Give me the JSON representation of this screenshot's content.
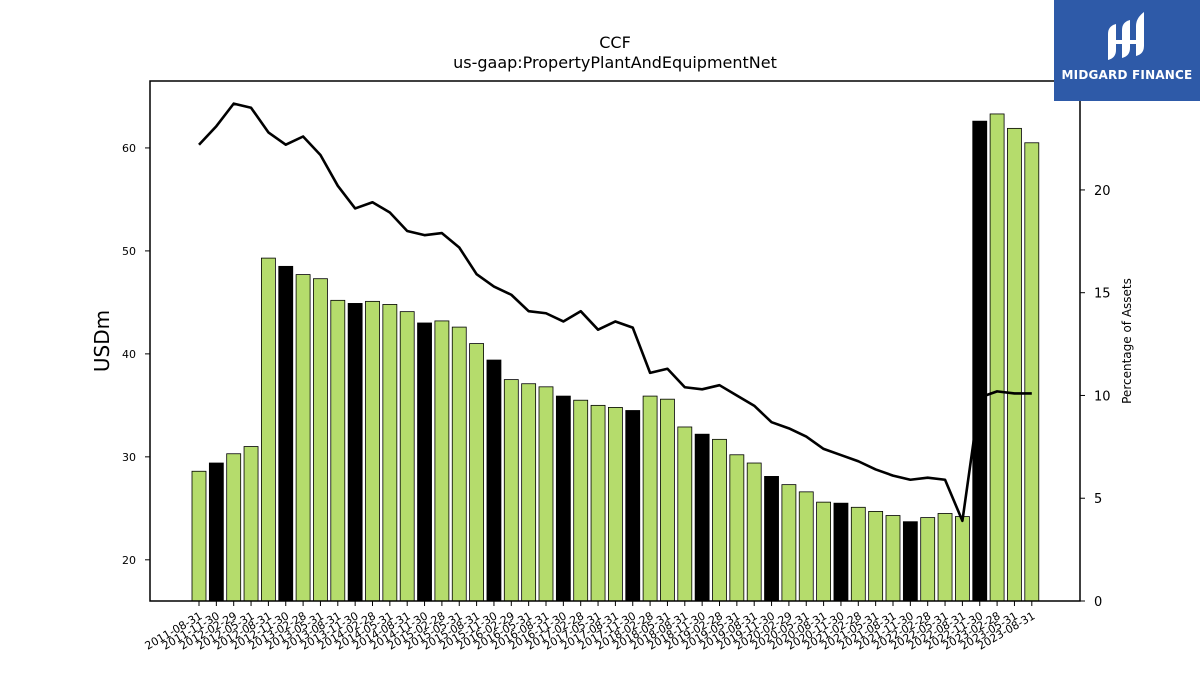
{
  "chart_data": {
    "type": "bar",
    "title": "CCF",
    "subtitle": "us-gaap:PropertyPlantAndEquipmentNet",
    "ylabel_left": "USDm",
    "ylabel_right": "Percentage of Assets",
    "ylim_left": [
      16,
      66.5
    ],
    "ylim_right": [
      0,
      25.3
    ],
    "yticks_left": [
      20,
      30,
      40,
      50,
      60
    ],
    "yticks_right": [
      0,
      5,
      10,
      15,
      20
    ],
    "colors": {
      "bar_default": "#b5dc6c",
      "bar_highlight": "#000000",
      "line": "#000000"
    },
    "categories": [
      "2011-08-31",
      "2011-11-30",
      "2012-02-29",
      "2012-05-31",
      "2012-08-31",
      "2012-11-30",
      "2013-02-28",
      "2013-05-31",
      "2013-08-31",
      "2013-11-30",
      "2014-02-28",
      "2014-05-31",
      "2014-08-31",
      "2014-11-30",
      "2015-02-28",
      "2015-05-31",
      "2015-08-31",
      "2015-11-30",
      "2016-02-29",
      "2016-05-31",
      "2016-08-31",
      "2016-11-30",
      "2017-02-28",
      "2017-05-31",
      "2017-08-31",
      "2017-11-30",
      "2018-02-28",
      "2018-05-31",
      "2018-08-31",
      "2018-11-30",
      "2019-02-28",
      "2019-05-31",
      "2019-08-31",
      "2019-11-30",
      "2020-02-29",
      "2020-05-31",
      "2020-08-31",
      "2020-11-30",
      "2021-02-28",
      "2021-05-31",
      "2021-08-31",
      "2021-11-30",
      "2022-02-28",
      "2022-05-31",
      "2022-08-31",
      "2022-11-30",
      "2023-02-28",
      "2023-05-31",
      "2023-08-31"
    ],
    "series": [
      {
        "type": "bar",
        "values": [
          28.6,
          29.4,
          30.3,
          31.0,
          49.3,
          48.5,
          47.7,
          47.3,
          45.2,
          44.9,
          45.1,
          44.8,
          44.1,
          43.0,
          43.2,
          42.6,
          41.0,
          39.4,
          37.5,
          37.1,
          36.8,
          35.9,
          35.5,
          35.0,
          34.8,
          34.5,
          35.9,
          35.6,
          32.9,
          32.2,
          31.7,
          30.2,
          29.4,
          28.1,
          27.3,
          26.6,
          25.6,
          25.5,
          25.1,
          24.7,
          24.3,
          23.7,
          24.1,
          24.5,
          24.2,
          62.6,
          63.3,
          61.9,
          60.5
        ],
        "highlight": [
          false,
          true,
          false,
          false,
          false,
          true,
          false,
          false,
          false,
          true,
          false,
          false,
          false,
          true,
          false,
          false,
          false,
          true,
          false,
          false,
          false,
          true,
          false,
          false,
          false,
          true,
          false,
          false,
          false,
          true,
          false,
          false,
          false,
          true,
          false,
          false,
          false,
          true,
          false,
          false,
          false,
          true,
          false,
          false,
          false,
          true,
          false,
          false,
          false
        ]
      },
      {
        "type": "line",
        "axis": "right",
        "values": [
          22.2,
          23.1,
          24.2,
          24.0,
          22.8,
          22.2,
          22.6,
          21.7,
          20.2,
          19.1,
          19.4,
          18.9,
          18.0,
          17.8,
          17.9,
          17.2,
          15.9,
          15.3,
          14.9,
          14.1,
          14.0,
          13.6,
          14.1,
          13.2,
          13.6,
          13.3,
          11.1,
          11.3,
          10.4,
          10.3,
          10.5,
          10.0,
          9.5,
          8.7,
          8.4,
          8.0,
          7.4,
          7.1,
          6.8,
          6.4,
          6.1,
          5.9,
          6.0,
          5.9,
          3.9,
          9.9,
          10.2,
          10.1,
          10.1
        ]
      }
    ]
  },
  "logo": {
    "text": "MIDGARD FINANCE"
  }
}
